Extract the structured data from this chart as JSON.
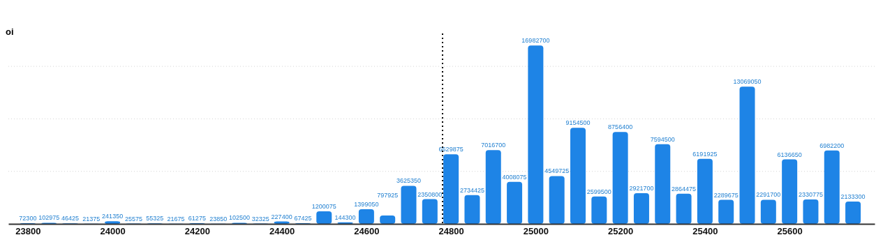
{
  "chart_data": {
    "type": "bar",
    "ylabel": "oi",
    "x": [
      23800,
      23850,
      23900,
      23950,
      24000,
      24050,
      24100,
      24150,
      24200,
      24250,
      24300,
      24350,
      24400,
      24450,
      24500,
      24550,
      24600,
      24650,
      24700,
      24750,
      24800,
      24850,
      24900,
      24950,
      25000,
      25050,
      25100,
      25150,
      25200,
      25250,
      25300,
      25350,
      25400,
      25450,
      25500,
      25550,
      25600,
      25650,
      25700,
      25750
    ],
    "values": [
      72300,
      102975,
      46425,
      21375,
      241350,
      25575,
      55325,
      21675,
      61275,
      23850,
      102500,
      32325,
      227400,
      67425,
      1200075,
      144300,
      1399050,
      797925,
      3625350,
      2350800,
      6629875,
      2734425,
      7016700,
      4008075,
      16982700,
      4549725,
      9154500,
      2599500,
      8756400,
      2921700,
      7594500,
      2864475,
      6191925,
      2289675,
      13069050,
      2291700,
      6136650,
      2330775,
      6982200,
      2133300
    ],
    "color": "#1e84e6",
    "data_labels": true,
    "xlim": [
      23754,
      25801
    ],
    "xticks": [
      23800,
      24000,
      24200,
      24400,
      24600,
      24800,
      25000,
      25200,
      25400,
      25600
    ],
    "ylim": [
      0,
      17200000
    ],
    "yticks": [
      {
        "value": 5000000,
        "label": null
      },
      {
        "value": 10000000,
        "label": null
      },
      {
        "value": 15000000,
        "label": null
      }
    ],
    "grid": "y",
    "tick_labels": "x",
    "ref_lines": [
      {
        "axis": "x",
        "value": 24780,
        "line_style": "dotted",
        "color": "#000000"
      }
    ]
  }
}
